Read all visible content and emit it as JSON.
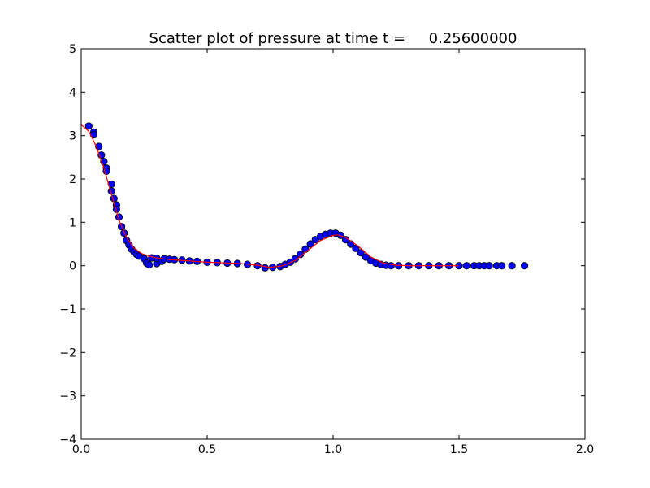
{
  "chart_data": {
    "type": "scatter",
    "title": "Scatter plot of pressure at time t =     0.25600000",
    "xlabel": "",
    "ylabel": "",
    "xlim": [
      0.0,
      2.0
    ],
    "ylim": [
      -4,
      5
    ],
    "x_ticks": [
      "0.0",
      "0.5",
      "1.0",
      "1.5",
      "2.0"
    ],
    "y_ticks": [
      "−4",
      "−3",
      "−2",
      "−1",
      "0",
      "1",
      "2",
      "3",
      "4",
      "5"
    ],
    "grid": false,
    "legend": "none",
    "series": [
      {
        "kind": "scatter",
        "color": "#0000ff",
        "edge_color": "#000000",
        "x": [
          0.03,
          0.05,
          0.05,
          0.07,
          0.08,
          0.09,
          0.1,
          0.1,
          0.12,
          0.12,
          0.13,
          0.14,
          0.14,
          0.15,
          0.16,
          0.17,
          0.18,
          0.19,
          0.2,
          0.21,
          0.22,
          0.23,
          0.25,
          0.26,
          0.27,
          0.28,
          0.3,
          0.3,
          0.32,
          0.33,
          0.35,
          0.37,
          0.4,
          0.43,
          0.46,
          0.5,
          0.54,
          0.58,
          0.62,
          0.66,
          0.7,
          0.73,
          0.76,
          0.79,
          0.81,
          0.83,
          0.85,
          0.87,
          0.89,
          0.91,
          0.93,
          0.95,
          0.97,
          0.99,
          1.01,
          1.03,
          1.05,
          1.07,
          1.09,
          1.11,
          1.13,
          1.15,
          1.17,
          1.19,
          1.21,
          1.23,
          1.26,
          1.3,
          1.34,
          1.38,
          1.42,
          1.46,
          1.5,
          1.53,
          1.56,
          1.58,
          1.6,
          1.62,
          1.65,
          1.67,
          1.71,
          1.76
        ],
        "y": [
          3.22,
          3.08,
          3.02,
          2.75,
          2.55,
          2.4,
          2.25,
          2.18,
          1.88,
          1.72,
          1.55,
          1.4,
          1.3,
          1.12,
          0.9,
          0.75,
          0.58,
          0.48,
          0.38,
          0.32,
          0.26,
          0.22,
          0.16,
          0.06,
          0.02,
          0.18,
          0.05,
          0.17,
          0.1,
          0.16,
          0.15,
          0.14,
          0.13,
          0.11,
          0.1,
          0.08,
          0.07,
          0.06,
          0.05,
          0.03,
          0.0,
          -0.05,
          -0.04,
          -0.02,
          0.03,
          0.08,
          0.16,
          0.26,
          0.38,
          0.5,
          0.6,
          0.67,
          0.72,
          0.75,
          0.75,
          0.7,
          0.6,
          0.5,
          0.4,
          0.3,
          0.2,
          0.12,
          0.06,
          0.03,
          0.01,
          0.0,
          0.0,
          0.0,
          0.0,
          0.0,
          0.0,
          0.0,
          0.0,
          0.0,
          0.0,
          0.0,
          0.0,
          0.0,
          0.0,
          0.0,
          0.0,
          0.0
        ]
      },
      {
        "kind": "line",
        "color": "#ff0000",
        "x": [
          0.0,
          0.03,
          0.06,
          0.09,
          0.12,
          0.15,
          0.18,
          0.21,
          0.24,
          0.27,
          0.3,
          0.35,
          0.4,
          0.45,
          0.5,
          0.55,
          0.6,
          0.65,
          0.7,
          0.75,
          0.8,
          0.85,
          0.9,
          0.95,
          1.0,
          1.02,
          1.05,
          1.1,
          1.15,
          1.2,
          1.25,
          1.3,
          1.4,
          1.5
        ],
        "y": [
          3.25,
          3.1,
          2.75,
          2.25,
          1.65,
          1.05,
          0.65,
          0.4,
          0.28,
          0.22,
          0.18,
          0.14,
          0.12,
          0.1,
          0.08,
          0.07,
          0.06,
          0.04,
          0.01,
          -0.04,
          0.0,
          0.12,
          0.35,
          0.58,
          0.7,
          0.71,
          0.65,
          0.45,
          0.2,
          0.06,
          0.01,
          0.0,
          0.0,
          0.0
        ]
      }
    ]
  }
}
